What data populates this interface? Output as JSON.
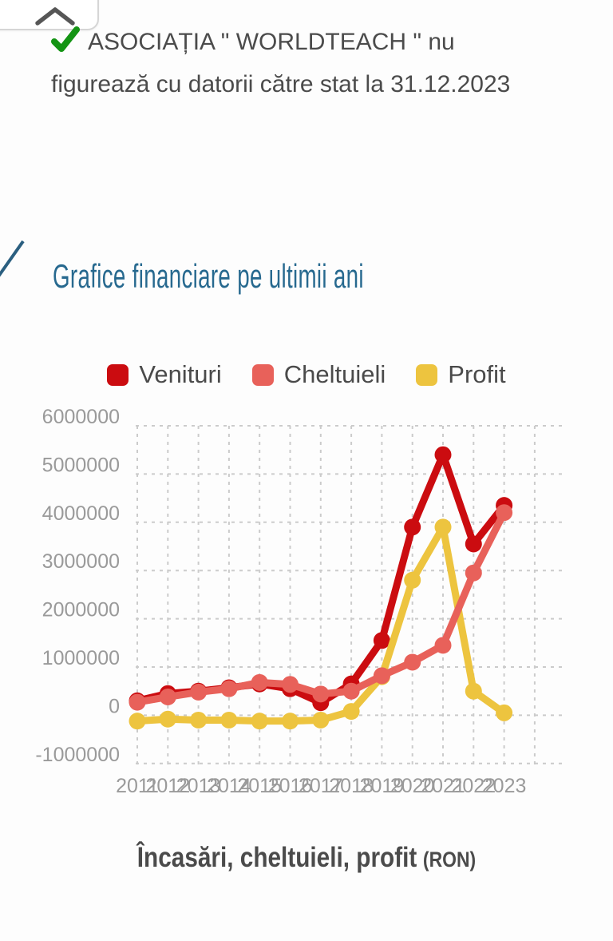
{
  "toolbar": {
    "collapse_button": "collapse section"
  },
  "status": {
    "text": "ASOCIAȚIA \" WORLDTEACH \" nu figurează cu datorii către stat la 31.12.2023",
    "check_color": "#149414"
  },
  "section": {
    "title": "Grafice financiare pe ultimii ani",
    "title_color": "#27698f",
    "accent_color": "#2b5f80"
  },
  "legend": {
    "items": [
      {
        "label": "Venituri",
        "color": "#cb0c10"
      },
      {
        "label": "Cheltuieli",
        "color": "#e8615a"
      },
      {
        "label": "Profit",
        "color": "#edc43f"
      }
    ]
  },
  "chart_data": {
    "type": "line",
    "title": "Încasări, cheltuieli, profit (RON)",
    "categories": [
      "2011",
      "2012",
      "2013",
      "2014",
      "2015",
      "2016",
      "2017",
      "2018",
      "2019",
      "2020",
      "2021",
      "2022",
      "2023"
    ],
    "series": [
      {
        "name": "Venituri",
        "color": "#cb0c10",
        "values": [
          300000,
          450000,
          500000,
          570000,
          650000,
          550000,
          260000,
          650000,
          1550000,
          3900000,
          5400000,
          3550000,
          4350000
        ]
      },
      {
        "name": "Cheltuieli",
        "color": "#e8615a",
        "values": [
          270000,
          380000,
          480000,
          550000,
          680000,
          640000,
          440000,
          500000,
          820000,
          1100000,
          1450000,
          2950000,
          4200000
        ]
      },
      {
        "name": "Profit",
        "color": "#edc43f",
        "values": [
          -120000,
          -80000,
          -100000,
          -100000,
          -120000,
          -120000,
          -100000,
          80000,
          800000,
          2800000,
          3900000,
          500000,
          50000
        ]
      }
    ],
    "ylim": [
      -1000000,
      6000000
    ],
    "ytick_step": 1000000,
    "grid": true,
    "grid_style": "dashed",
    "legend_position": "top",
    "axis_text_color": "#9a9a9a"
  },
  "caption": {
    "title": "Încasări, cheltuieli, profit",
    "unit": "(RON)"
  }
}
